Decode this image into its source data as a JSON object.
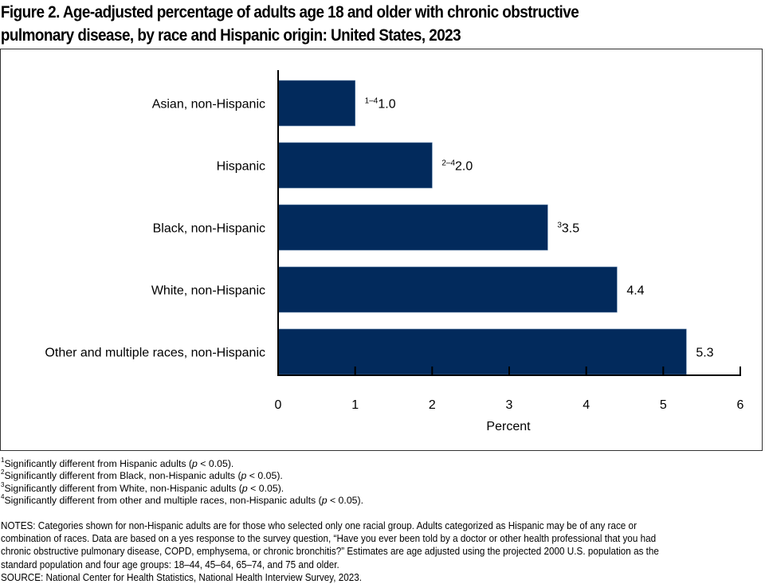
{
  "title": {
    "line1": "Figure 2. Age-adjusted percentage of adults age 18 and older with chronic obstructive",
    "line2": "pulmonary disease, by race and Hispanic origin: United States, 2023"
  },
  "chart_data": {
    "type": "bar",
    "orientation": "horizontal",
    "title": "Figure 2. Age-adjusted percentage of adults age 18 and older with chronic obstructive pulmonary disease, by race and Hispanic origin: United States, 2023",
    "categories": [
      "Asian, non-Hispanic",
      "Hispanic",
      "Black, non-Hispanic",
      "White, non-Hispanic",
      "Other and multiple races, non-Hispanic"
    ],
    "values": [
      1.0,
      2.0,
      3.5,
      4.4,
      5.3
    ],
    "value_labels": [
      "1.0",
      "2.0",
      "3.5",
      "4.4",
      "5.3"
    ],
    "label_superscripts": [
      "1–4",
      "2–4",
      "3",
      "",
      ""
    ],
    "xlabel": "Percent",
    "ylabel": "",
    "xlim": [
      0,
      6
    ],
    "xticks": [
      0,
      1,
      2,
      3,
      4,
      5,
      6
    ],
    "tick_labels": [
      "0",
      "1",
      "2",
      "3",
      "4",
      "5",
      "6"
    ],
    "grid": false,
    "legend": "none",
    "bar_color": "#022a5c"
  },
  "footnotes": [
    {
      "mark": "1",
      "text": "Significantly different from Hispanic adults (",
      "p": "p",
      "tail": " < 0.05)."
    },
    {
      "mark": "2",
      "text": "Significantly different from Black, non-Hispanic adults (",
      "p": "p",
      "tail": " < 0.05)."
    },
    {
      "mark": "3",
      "text": "Significantly different from White, non-Hispanic adults (",
      "p": "p",
      "tail": " < 0.05)."
    },
    {
      "mark": "4",
      "text": "Significantly different from other and multiple races, non-Hispanic adults (",
      "p": "p",
      "tail": " < 0.05)."
    }
  ],
  "notes": [
    "NOTES: Categories shown for non-Hispanic adults are for those who selected only one racial group. Adults categorized as Hispanic may be of any race or",
    "combination of races. Data are based on a yes response to the survey question, “Have you ever been told by a doctor or other health professional that you had",
    "chronic obstructive pulmonary disease, COPD, emphysema, or chronic bronchitis?” Estimates are age adjusted using the projected 2000 U.S. population as the",
    "standard population and four age groups: 18–44, 45–64, 65–74, and 75 and older."
  ],
  "source": "SOURCE: National Center for Health Statistics, National Health Interview Survey, 2023."
}
